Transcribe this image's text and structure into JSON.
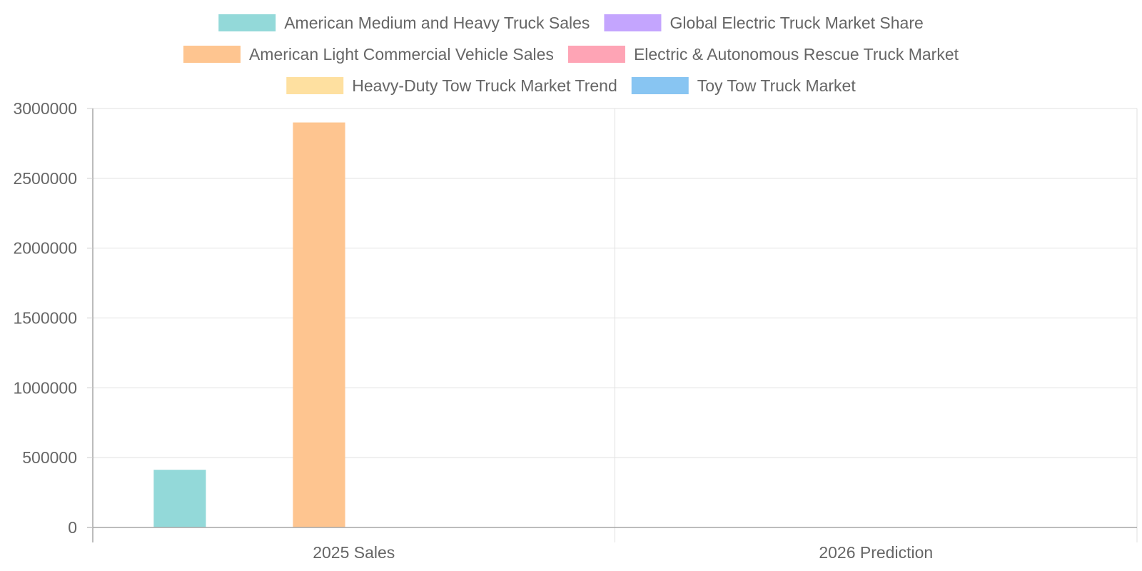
{
  "chart_data": {
    "type": "bar",
    "categories": [
      "2025 Sales",
      "2026 Prediction"
    ],
    "series": [
      {
        "name": "American Medium and Heavy Truck Sales",
        "color": "#93d9d9",
        "values": [
          413000,
          null
        ]
      },
      {
        "name": "Global Electric Truck Market Share",
        "color": "#c4a5fe",
        "values": [
          null,
          null
        ]
      },
      {
        "name": "American Light Commercial Vehicle Sales",
        "color": "#fec590",
        "values": [
          2900000,
          null
        ]
      },
      {
        "name": "Electric & Autonomous Rescue Truck Market",
        "color": "#fea4b5",
        "values": [
          null,
          null
        ]
      },
      {
        "name": "Heavy-Duty Tow Truck Market Trend",
        "color": "#fee0a0",
        "values": [
          null,
          null
        ]
      },
      {
        "name": "Toy Tow Truck Market",
        "color": "#88c5f2",
        "values": [
          null,
          null
        ]
      }
    ],
    "ylim": [
      0,
      3000000
    ],
    "yticks": [
      0,
      500000,
      1000000,
      1500000,
      2000000,
      2500000,
      3000000
    ],
    "title": "",
    "xlabel": "",
    "ylabel": "",
    "grid": true,
    "legend_position": "top"
  }
}
